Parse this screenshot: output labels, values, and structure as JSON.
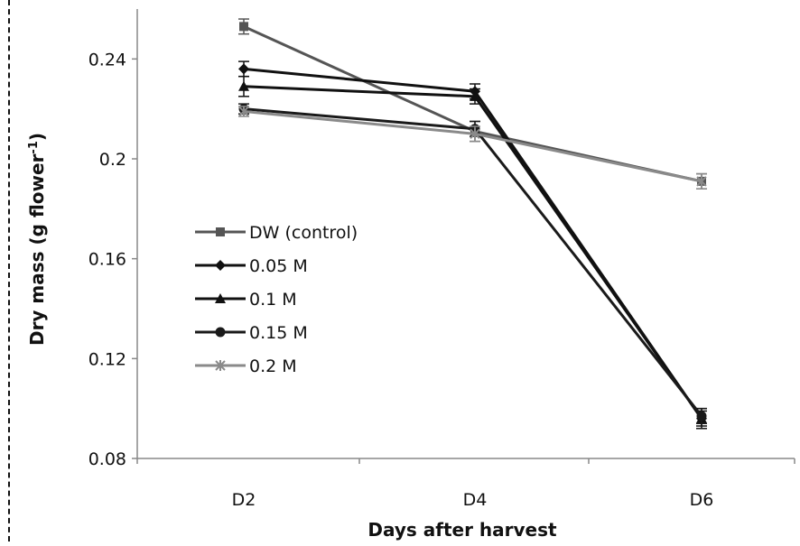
{
  "chart_data": {
    "type": "line",
    "categories": [
      "D2",
      "D4",
      "D6"
    ],
    "xlabel": "Days after harvest",
    "ylabel": "Dry mass (g flower",
    "ylabel_sup": "-1",
    "ylabel_close": ")",
    "ylim": [
      0.08,
      0.26
    ],
    "yticks": [
      0.08,
      0.12,
      0.16,
      0.2,
      0.24
    ],
    "ytick_labels": [
      "0.08",
      "0.12",
      "0.16",
      "0.2",
      "0.24"
    ],
    "grid": false,
    "legend_position": "left",
    "series": [
      {
        "name": "DW (control)",
        "marker": "square",
        "color": "#555555",
        "values": [
          0.253,
          0.211,
          0.191
        ],
        "errors": [
          0.003,
          0.004,
          0.003
        ]
      },
      {
        "name": "0.05 M",
        "marker": "diamond",
        "color": "#111111",
        "values": [
          0.236,
          0.227,
          0.096
        ],
        "errors": [
          0.003,
          0.003,
          0.003
        ]
      },
      {
        "name": "0.1 M",
        "marker": "triangle",
        "color": "#111111",
        "values": [
          0.229,
          0.225,
          0.096
        ],
        "errors": [
          0.004,
          0.003,
          0.004
        ]
      },
      {
        "name": "0.15 M",
        "marker": "circle",
        "color": "#1a1a1a",
        "values": [
          0.22,
          0.212,
          0.097
        ],
        "errors": [
          0.002,
          0.003,
          0.003
        ]
      },
      {
        "name": "0.2 M",
        "marker": "star",
        "color": "#8a8a8a",
        "values": [
          0.219,
          0.21,
          0.191
        ],
        "errors": [
          0.002,
          0.003,
          0.003
        ]
      }
    ]
  }
}
